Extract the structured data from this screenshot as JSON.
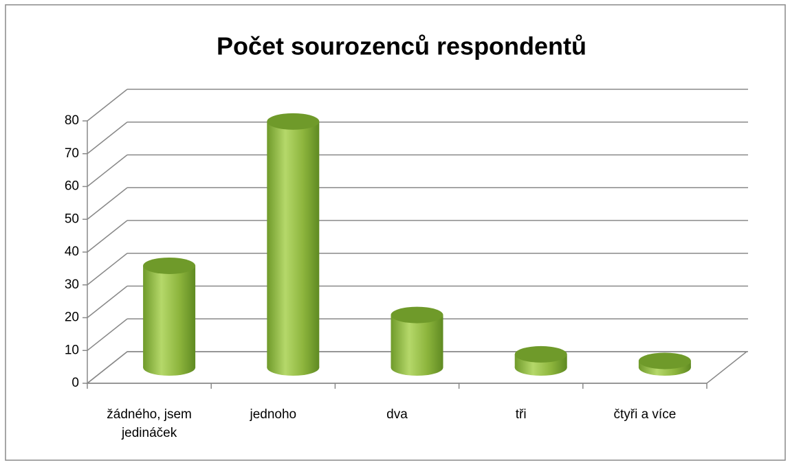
{
  "chart_data": {
    "type": "bar3d",
    "title": "Počet sourozenců respondentů",
    "categories": [
      "žádného, jsem jedináček",
      "jednoho",
      "dva",
      "tři",
      "čtyři a více"
    ],
    "values": [
      31,
      75,
      16,
      4,
      2
    ],
    "color": "#8cb43c",
    "ylim": [
      0,
      80
    ],
    "yticks": [
      0,
      10,
      20,
      30,
      40,
      50,
      60,
      70,
      80
    ],
    "grid": true
  }
}
